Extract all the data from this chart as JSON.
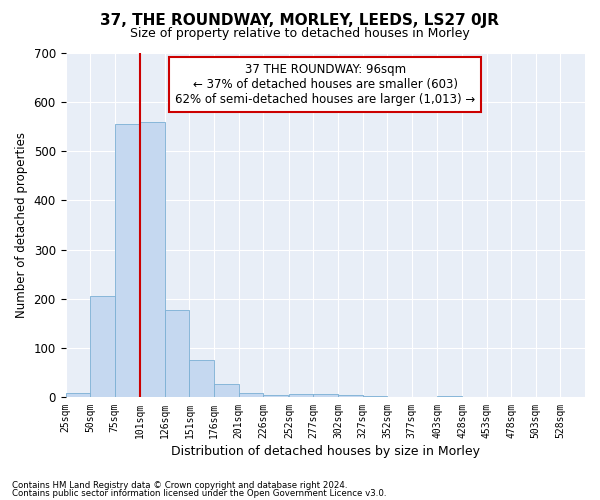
{
  "title": "37, THE ROUNDWAY, MORLEY, LEEDS, LS27 0JR",
  "subtitle": "Size of property relative to detached houses in Morley",
  "xlabel": "Distribution of detached houses by size in Morley",
  "ylabel": "Number of detached properties",
  "bar_color": "#c5d8f0",
  "bar_edge_color": "#7bafd4",
  "background_color": "#e8eef7",
  "annotation_line1": "37 THE ROUNDWAY: 96sqm",
  "annotation_line2": "← 37% of detached houses are smaller (603)",
  "annotation_line3": "62% of semi-detached houses are larger (1,013) →",
  "vline_color": "#cc0000",
  "vline_x": 101,
  "bins": [
    25,
    50,
    75,
    101,
    126,
    151,
    176,
    201,
    226,
    252,
    277,
    302,
    327,
    352,
    377,
    403,
    428,
    453,
    478,
    503,
    528
  ],
  "bin_labels": [
    "25sqm",
    "50sqm",
    "75sqm",
    "101sqm",
    "126sqm",
    "151sqm",
    "176sqm",
    "201sqm",
    "226sqm",
    "252sqm",
    "277sqm",
    "302sqm",
    "327sqm",
    "352sqm",
    "377sqm",
    "403sqm",
    "428sqm",
    "453sqm",
    "478sqm",
    "503sqm",
    "528sqm"
  ],
  "values": [
    10,
    205,
    555,
    558,
    178,
    75,
    27,
    10,
    5,
    8,
    8,
    5,
    3,
    0,
    0,
    3,
    0,
    0,
    0,
    0,
    0
  ],
  "ylim": [
    0,
    700
  ],
  "yticks": [
    0,
    100,
    200,
    300,
    400,
    500,
    600,
    700
  ],
  "footnote1": "Contains HM Land Registry data © Crown copyright and database right 2024.",
  "footnote2": "Contains public sector information licensed under the Open Government Licence v3.0."
}
